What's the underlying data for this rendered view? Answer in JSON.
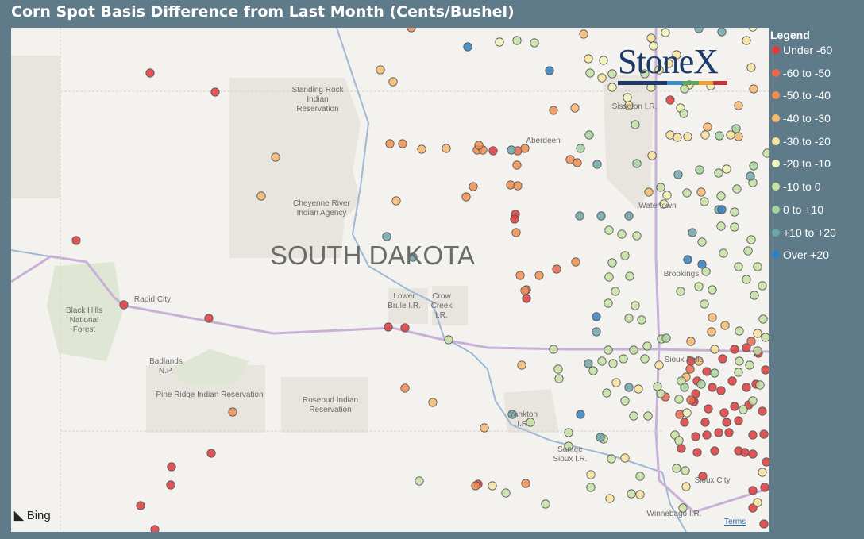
{
  "header": {
    "title": "Corn Spot Basis Difference from Last Month (Cents/Bushel)"
  },
  "legend": {
    "title": "Legend",
    "items": [
      {
        "label": "Under -60",
        "color": "#dc3b3c"
      },
      {
        "label": "-60 to -50",
        "color": "#e96a4b"
      },
      {
        "label": "-50 to -40",
        "color": "#f08e50"
      },
      {
        "label": "-40 to -30",
        "color": "#f6b96d"
      },
      {
        "label": "-30 to -20",
        "color": "#f8e39c"
      },
      {
        "label": "-20 to -10",
        "color": "#f0f5b6"
      },
      {
        "label": "-10 to 0",
        "color": "#c6e2a3"
      },
      {
        "label": "0 to +10",
        "color": "#a5d49b"
      },
      {
        "label": "+10 to +20",
        "color": "#6ba7a9"
      },
      {
        "label": "Over +20",
        "color": "#2f80c0"
      }
    ]
  },
  "map": {
    "state": "SOUTH DAKOTA",
    "labels": [
      "Standing Rock Indian Reservation",
      "Cheyenne River Indian Agency",
      "Aberdeen",
      "Sisseton I.R.",
      "Watertown",
      "Brookings",
      "Rapid City",
      "Black Hills National Forest",
      "Badlands N.P.",
      "Pine Ridge Indian Reservation",
      "Rosebud Indian Reservation",
      "Lower Brule I.R.",
      "Crow Creek I.R.",
      "Yankton I.R.",
      "Santee Sioux I.R.",
      "Sioux City",
      "Winnebago I.R.",
      "Sioux Falls"
    ]
  },
  "logo": "StoneX",
  "attribution": {
    "provider": "Bing",
    "terms": "Terms"
  }
}
